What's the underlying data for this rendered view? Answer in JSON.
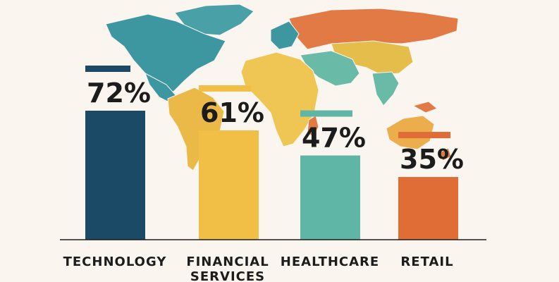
{
  "chart_data": {
    "type": "bar",
    "categories": [
      "TECHNOLOGY",
      "FINANCIAL SERVICES",
      "HEALTHCARE",
      "RETAIL"
    ],
    "category_lines": [
      [
        "TECHNOLOGY"
      ],
      [
        "FINANCIAL",
        "SERVICES"
      ],
      [
        "HEALTHCARE"
      ],
      [
        "RETAIL"
      ]
    ],
    "values": [
      72,
      61,
      47,
      35
    ],
    "value_labels": [
      "72%",
      "61%",
      "47%",
      "35%"
    ],
    "ylim": [
      0,
      100
    ],
    "grid": false,
    "legend": "none",
    "colors": [
      "#1a4a66",
      "#f1bf45",
      "#5fb6a6",
      "#df6d35"
    ]
  },
  "background": {
    "kind": "world-map",
    "region_colors": {
      "north_america": "#2e8f9b",
      "south_america": "#e9b43a",
      "europe_russia": "#e07038",
      "asia": "#e3b93e",
      "africa": "#efc246",
      "middle_east": "#5db6a3",
      "oceania": "#eba73f",
      "greenland": "#3a9aa1"
    }
  }
}
